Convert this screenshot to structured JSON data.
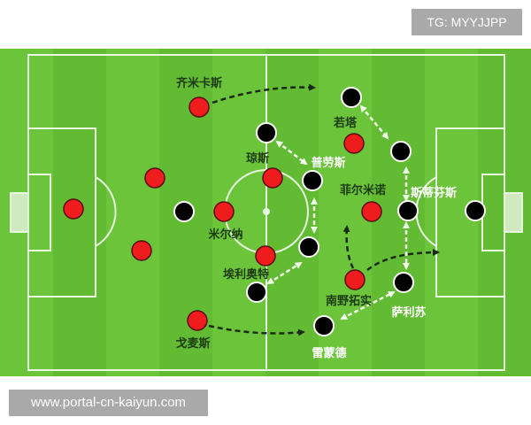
{
  "watermark_top": "TG: MYYJJPP",
  "watermark_bottom": "www.portal-cn-kaiyun.com",
  "colors": {
    "pitch": "#6cc43a",
    "pitch_stripe": "#62bb33",
    "lines": "#e8f7df",
    "team_red": "#ee1c1c",
    "team_black": "#000000",
    "run_arrow": "#1a2a14",
    "marking_arrow": "#f0fbe8"
  },
  "labels": {
    "minamino_red_1": "齐米卡斯",
    "jones": "琼斯",
    "jota": "若塔",
    "prowse": "普劳斯",
    "firmino": "菲尔米诺",
    "stephens": "斯蒂芬斯",
    "milner": "米尔纳",
    "elliott": "埃利奥特",
    "minamino": "南野拓实",
    "salisu": "萨利苏",
    "gomez": "戈麦斯",
    "redmond": "雷蒙德"
  }
}
